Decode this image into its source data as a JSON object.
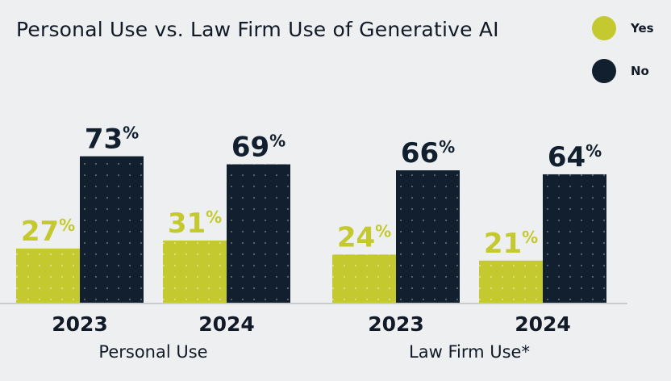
{
  "colors": {
    "yes": "#c3c92e",
    "no": "#111f2e",
    "text": "#111a26",
    "background": "#eeeff1",
    "axis": "#c9ccd1"
  },
  "chart_data": {
    "type": "bar",
    "title": "Personal Use vs. Law Firm Use of Generative AI",
    "legend": {
      "placement": "top-right",
      "items": [
        "Yes",
        "No"
      ]
    },
    "categories": [
      "2023",
      "2024",
      "2023",
      "2024"
    ],
    "groups": [
      {
        "name": "Personal Use",
        "categories": [
          "2023",
          "2024"
        ]
      },
      {
        "name": "Law Firm Use*",
        "categories": [
          "2023",
          "2024"
        ]
      }
    ],
    "series": [
      {
        "name": "Yes",
        "values": [
          27,
          31,
          24,
          21
        ]
      },
      {
        "name": "No",
        "values": [
          73,
          69,
          66,
          64
        ]
      }
    ],
    "unit": "%",
    "xlabel": "",
    "ylabel": "",
    "ylim": [
      0,
      100
    ],
    "grid": false
  }
}
